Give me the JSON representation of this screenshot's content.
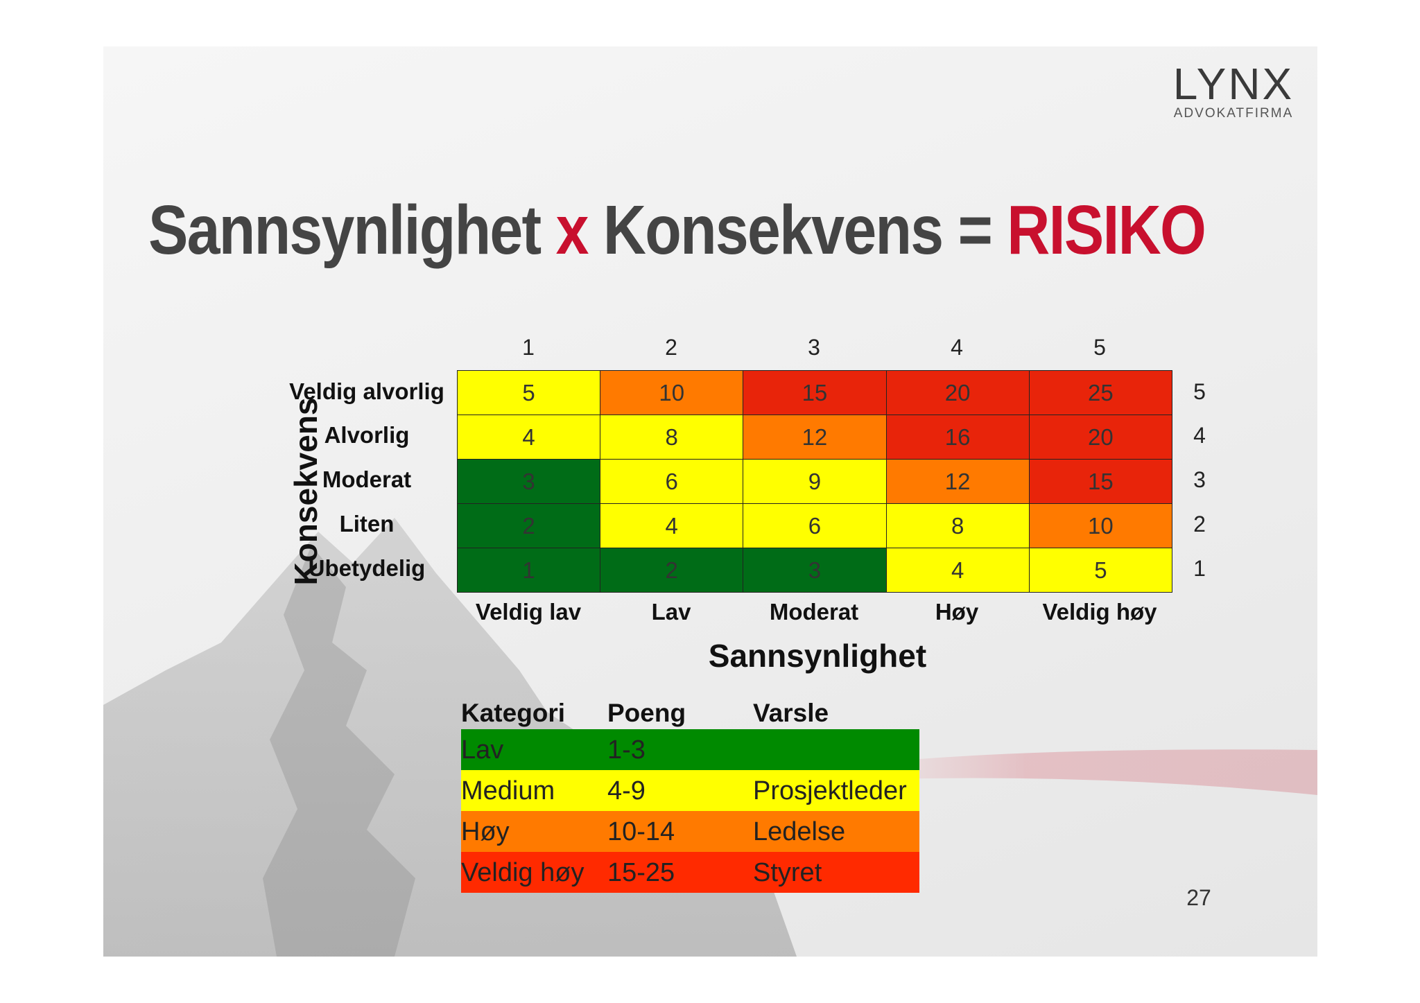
{
  "logo": {
    "word": "LYNX",
    "sub": "ADVOKATFIRMA"
  },
  "title": {
    "part1": "Sannsynlighet",
    "x": "x",
    "part2": "Konsekvens",
    "eq": "=",
    "risk": "RISIKO"
  },
  "column_numbers": [
    "1",
    "2",
    "3",
    "4",
    "5"
  ],
  "y_axis_label": "Konsekvens",
  "x_axis_label": "Sannsynlighet",
  "x_categories": [
    "Veldig lav",
    "Lav",
    "Moderat",
    "Høy",
    "Veldig høy"
  ],
  "rows": [
    {
      "label": "Veldig alvorlig",
      "num": "5",
      "cells": [
        "5",
        "10",
        "15",
        "20",
        "25"
      ]
    },
    {
      "label": "Alvorlig",
      "num": "4",
      "cells": [
        "4",
        "8",
        "12",
        "16",
        "20"
      ]
    },
    {
      "label": "Moderat",
      "num": "3",
      "cells": [
        "3",
        "6",
        "9",
        "12",
        "15"
      ]
    },
    {
      "label": "Liten",
      "num": "2",
      "cells": [
        "2",
        "4",
        "6",
        "8",
        "10"
      ]
    },
    {
      "label": "Ubetydelig",
      "num": "1",
      "cells": [
        "1",
        "2",
        "3",
        "4",
        "5"
      ]
    }
  ],
  "cell_colors": [
    [
      "#ffff00",
      "#ff7a00",
      "#e8240a",
      "#e8240a",
      "#e8240a"
    ],
    [
      "#ffff00",
      "#ffff00",
      "#ff7a00",
      "#e8240a",
      "#e8240a"
    ],
    [
      "#006c17",
      "#ffff00",
      "#ffff00",
      "#ff7a00",
      "#e8240a"
    ],
    [
      "#006c17",
      "#ffff00",
      "#ffff00",
      "#ffff00",
      "#ff7a00"
    ],
    [
      "#006c17",
      "#006c17",
      "#006c17",
      "#ffff00",
      "#ffff00"
    ]
  ],
  "legend": {
    "headers": [
      "Kategori",
      "Poeng",
      "Varsle"
    ],
    "rows": [
      {
        "kategori": "Lav",
        "poeng": "1-3",
        "varsle": "",
        "color": "#008a00"
      },
      {
        "kategori": "Medium",
        "poeng": "4-9",
        "varsle": "Prosjektleder",
        "color": "#ffff00"
      },
      {
        "kategori": "Høy",
        "poeng": "10-14",
        "varsle": "Ledelse",
        "color": "#ff7a00"
      },
      {
        "kategori": "Veldig høy",
        "poeng": "15-25",
        "varsle": "Styret",
        "color": "#ff2a00"
      }
    ]
  },
  "page_number": "27",
  "colors": {
    "title_gray": "#444444",
    "accent_red": "#c8102e"
  }
}
